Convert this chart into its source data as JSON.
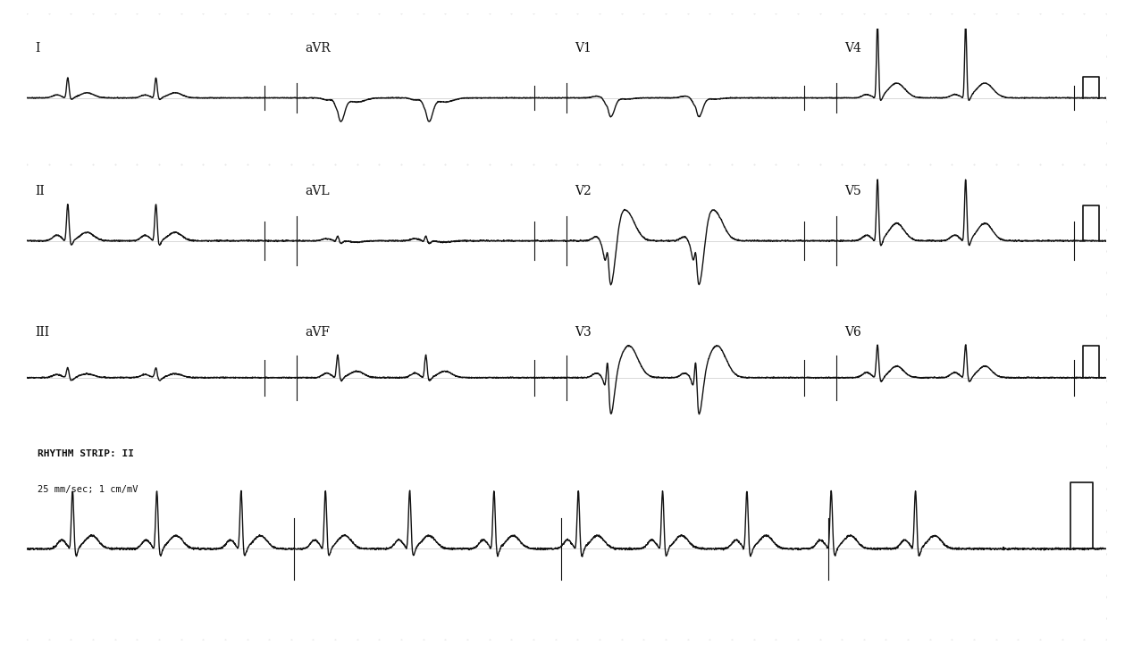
{
  "background_color": "#ffffff",
  "line_color": "#111111",
  "line_width": 1.0,
  "grid_color": "#dddddd",
  "text_color": "#111111",
  "rhythm_label": "RHYTHM STRIP: II",
  "rhythm_sublabel": "25 mm/sec; 1 cm/mV",
  "label_fontsize": 10,
  "rhythm_fontsize": 8,
  "figsize": [
    12.68,
    7.31
  ],
  "dpi": 100,
  "row_labels": [
    [
      "I",
      "aVR",
      "V1",
      "V4"
    ],
    [
      "II",
      "aVL",
      "V2",
      "V5"
    ],
    [
      "III",
      "aVF",
      "V3",
      "V6"
    ]
  ]
}
